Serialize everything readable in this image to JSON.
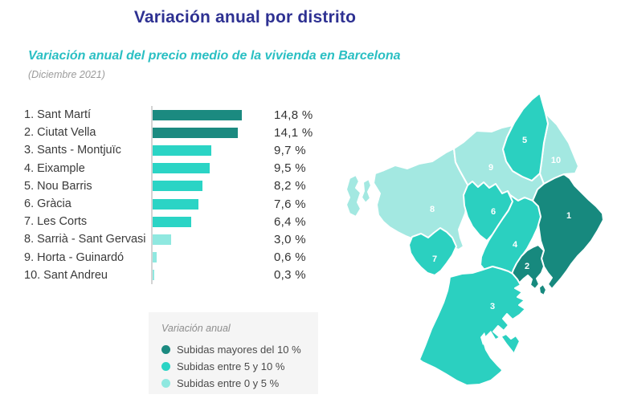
{
  "page": {
    "title": "Variación anual por distrito",
    "subtitle": "Variación anual del precio medio de la vivienda en Barcelona",
    "period": "(Diciembre 2021)"
  },
  "colors": {
    "title": "#2e3192",
    "subtitle": "#2abfc3",
    "tiers": {
      "high": "#1b8a80",
      "mid": "#2bd4c5",
      "low": "#8fe8e0"
    },
    "map_tiers": {
      "high": "#17897e",
      "mid": "#2bd0c0",
      "low": "#a3e8e1"
    }
  },
  "chart_data": {
    "type": "bar",
    "orientation": "horizontal",
    "title": "Variación anual por distrito",
    "subtitle": "Variación anual del precio medio de la vivienda en Barcelona",
    "period": "(Diciembre 2021)",
    "unit": "%",
    "categories": [
      "1. Sant Martí",
      "2. Ciutat Vella",
      "3. Sants - Montjuïc",
      "4. Eixample",
      "5. Nou Barris",
      "6. Gràcia",
      "7. Les Corts",
      "8. Sarrià - Sant Gervasi",
      "9. Horta - Guinardó",
      "10. Sant Andreu"
    ],
    "values": [
      14.8,
      14.1,
      9.7,
      9.5,
      8.2,
      7.6,
      6.4,
      3.0,
      0.6,
      0.3
    ],
    "value_labels": [
      "14,8 %",
      "14,1 %",
      "9,7 %",
      "9,5 %",
      "8,2 %",
      "7,6 %",
      "6,4 %",
      "3,0 %",
      "0,6 %",
      "0,3 %"
    ],
    "tiers": [
      "high",
      "high",
      "mid",
      "mid",
      "mid",
      "mid",
      "mid",
      "low",
      "low",
      "low"
    ],
    "xlim": [
      0,
      16
    ],
    "grid": false,
    "legend_position": "bottom-left"
  },
  "districts": [
    {
      "rank": 1,
      "label": "1. Sant Martí",
      "map_number": "1",
      "value": 14.8,
      "value_label": "14,8 %",
      "tier": "high"
    },
    {
      "rank": 2,
      "label": "2. Ciutat Vella",
      "map_number": "2",
      "value": 14.1,
      "value_label": "14,1 %",
      "tier": "high"
    },
    {
      "rank": 3,
      "label": "3. Sants - Montjuïc",
      "map_number": "3",
      "value": 9.7,
      "value_label": "9,7 %",
      "tier": "mid"
    },
    {
      "rank": 4,
      "label": "4. Eixample",
      "map_number": "4",
      "value": 9.5,
      "value_label": "9,5 %",
      "tier": "mid"
    },
    {
      "rank": 5,
      "label": "5. Nou Barris",
      "map_number": "5",
      "value": 8.2,
      "value_label": "8,2 %",
      "tier": "mid"
    },
    {
      "rank": 6,
      "label": "6. Gràcia",
      "map_number": "6",
      "value": 7.6,
      "value_label": "7,6 %",
      "tier": "mid"
    },
    {
      "rank": 7,
      "label": "7. Les Corts",
      "map_number": "7",
      "value": 6.4,
      "value_label": "6,4 %",
      "tier": "mid"
    },
    {
      "rank": 8,
      "label": "8. Sarrià - Sant Gervasi",
      "map_number": "8",
      "value": 3.0,
      "value_label": "3,0 %",
      "tier": "low"
    },
    {
      "rank": 9,
      "label": "9. Horta - Guinardó",
      "map_number": "9",
      "value": 0.6,
      "value_label": "0,6 %",
      "tier": "low"
    },
    {
      "rank": 10,
      "label": "10. Sant Andreu",
      "map_number": "10",
      "value": 0.3,
      "value_label": "0,3 %",
      "tier": "low"
    }
  ],
  "legend": {
    "title": "Variación anual",
    "items": [
      {
        "label": "Subidas mayores del 10 %",
        "tier": "high"
      },
      {
        "label": "Subidas entre 5 y 10 %",
        "tier": "mid"
      },
      {
        "label": "Subidas entre 0 y 5 %",
        "tier": "low"
      }
    ]
  }
}
